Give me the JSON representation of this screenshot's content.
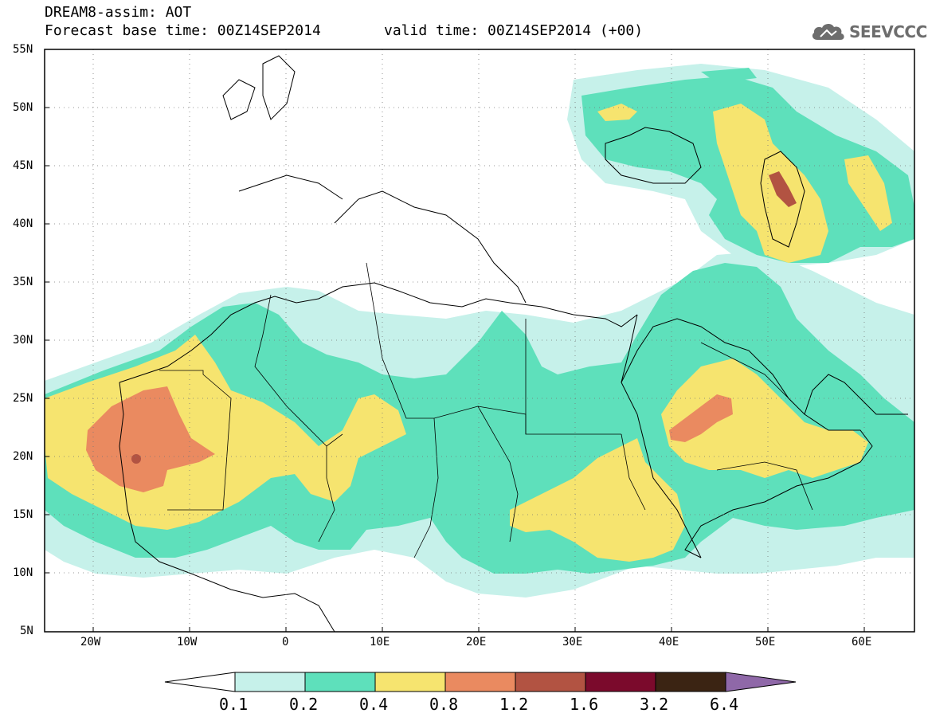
{
  "title": "DREAM8-assim: AOT",
  "forecast_line": "Forecast base time: 00Z14SEP2014",
  "valid_line": "valid time: 00Z14SEP2014 (+00)",
  "brand": "SEEVCCC",
  "lat_labels": [
    "55N",
    "50N",
    "45N",
    "40N",
    "35N",
    "30N",
    "25N",
    "20N",
    "15N",
    "10N",
    "5N"
  ],
  "lon_labels": [
    "20W",
    "10W",
    "0",
    "10E",
    "20E",
    "30E",
    "40E",
    "50E",
    "60E"
  ],
  "legend": {
    "labels": [
      "0.1",
      "0.2",
      "0.4",
      "0.8",
      "1.2",
      "1.6",
      "3.2",
      "6.4"
    ],
    "colors": [
      "#c6f1ea",
      "#5ee0bb",
      "#f6e46f",
      "#ea8a60",
      "#b25342",
      "#7b0a2c",
      "#3b2413",
      "#8f68a8"
    ]
  }
}
